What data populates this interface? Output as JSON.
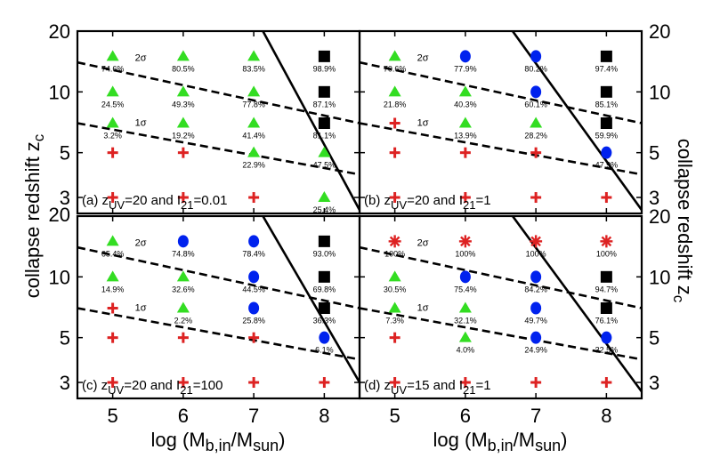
{
  "chart_data": {
    "type": "scatter",
    "x_ticks": [
      "5",
      "6",
      "7",
      "8"
    ],
    "y_ticks": [
      "3",
      "5",
      "10",
      "20"
    ],
    "xlabel": "log (M",
    "xlabel_sub": "b,in",
    "xlabel_mid": "/M",
    "xlabel_sub2": "sun",
    "xlabel_end": ")",
    "ylabel_left": "collapse redshift z",
    "ylabel_right": "collapse redshift z",
    "ylabel_sub": "c",
    "xlim": [
      4.5,
      8.5
    ],
    "ylim": [
      2.5,
      20
    ],
    "y_scale": "log",
    "sigma_labels": [
      "2σ",
      "1σ"
    ],
    "colors": {
      "triangle": "#33dd22",
      "circle": "#0022ee",
      "square": "#000000",
      "cross": "#dd2222",
      "star": "#dd2222"
    },
    "panels": [
      {
        "label_pre": "(a) z",
        "label_sub1": "UV",
        "label_mid": "=20 and I",
        "label_sub2": "21",
        "label_end": "=0.01",
        "lines": {
          "sigma2": [
            [
              4.5,
              14.0
            ],
            [
              8.5,
              7.0
            ]
          ],
          "sigma1": [
            [
              4.5,
              7.0
            ],
            [
              8.5,
              3.9
            ]
          ],
          "solid": [
            [
              7.13,
              20.0
            ],
            [
              8.5,
              2.6
            ]
          ]
        },
        "markers": [
          {
            "x": 5,
            "y": 15,
            "shape": "triangle",
            "label": "74.6%"
          },
          {
            "x": 6,
            "y": 15,
            "shape": "triangle",
            "label": "80.5%"
          },
          {
            "x": 7,
            "y": 15,
            "shape": "triangle",
            "label": "83.5%"
          },
          {
            "x": 8,
            "y": 15,
            "shape": "square",
            "label": "98.9%"
          },
          {
            "x": 5,
            "y": 10,
            "shape": "triangle",
            "label": "24.5%"
          },
          {
            "x": 6,
            "y": 10,
            "shape": "triangle",
            "label": "49.3%"
          },
          {
            "x": 7,
            "y": 10,
            "shape": "triangle",
            "label": "77.8%"
          },
          {
            "x": 8,
            "y": 10,
            "shape": "square",
            "label": "87.1%"
          },
          {
            "x": 5,
            "y": 7,
            "shape": "triangle",
            "label": "3.2%"
          },
          {
            "x": 6,
            "y": 7,
            "shape": "triangle",
            "label": "19.2%"
          },
          {
            "x": 7,
            "y": 7,
            "shape": "triangle",
            "label": "41.4%"
          },
          {
            "x": 8,
            "y": 7,
            "shape": "square",
            "label": "81.1%"
          },
          {
            "x": 5,
            "y": 5,
            "shape": "cross",
            "label": ""
          },
          {
            "x": 6,
            "y": 5,
            "shape": "cross",
            "label": ""
          },
          {
            "x": 7,
            "y": 5,
            "shape": "triangle",
            "label": "22.9%"
          },
          {
            "x": 8,
            "y": 5,
            "shape": "triangle",
            "label": "47.5%"
          },
          {
            "x": 5,
            "y": 3,
            "shape": "cross",
            "label": ""
          },
          {
            "x": 6,
            "y": 3,
            "shape": "cross",
            "label": ""
          },
          {
            "x": 7,
            "y": 3,
            "shape": "cross",
            "label": ""
          },
          {
            "x": 8,
            "y": 3,
            "shape": "triangle",
            "label": "25.4%"
          }
        ]
      },
      {
        "label_pre": "(b) z",
        "label_sub1": "UV",
        "label_mid": "=20 and I",
        "label_sub2": "21",
        "label_end": "=1",
        "lines": {
          "sigma2": [
            [
              4.5,
              14.0
            ],
            [
              8.5,
              7.0
            ]
          ],
          "sigma1": [
            [
              4.5,
              7.0
            ],
            [
              8.5,
              3.9
            ]
          ],
          "solid": [
            [
              6.67,
              20.0
            ],
            [
              8.5,
              2.6
            ]
          ]
        },
        "markers": [
          {
            "x": 5,
            "y": 15,
            "shape": "triangle",
            "label": "70.6%"
          },
          {
            "x": 6,
            "y": 15,
            "shape": "circle",
            "label": "77.9%"
          },
          {
            "x": 7,
            "y": 15,
            "shape": "circle",
            "label": "80.2%"
          },
          {
            "x": 8,
            "y": 15,
            "shape": "square",
            "label": "97.4%"
          },
          {
            "x": 5,
            "y": 10,
            "shape": "triangle",
            "label": "21.8%"
          },
          {
            "x": 6,
            "y": 10,
            "shape": "triangle",
            "label": "40.3%"
          },
          {
            "x": 7,
            "y": 10,
            "shape": "circle",
            "label": "60.1%"
          },
          {
            "x": 8,
            "y": 10,
            "shape": "square",
            "label": "85.1%"
          },
          {
            "x": 5,
            "y": 7,
            "shape": "cross",
            "label": ""
          },
          {
            "x": 6,
            "y": 7,
            "shape": "triangle",
            "label": "13.9%"
          },
          {
            "x": 7,
            "y": 7,
            "shape": "triangle",
            "label": "28.2%"
          },
          {
            "x": 8,
            "y": 7,
            "shape": "square",
            "label": "59.9%"
          },
          {
            "x": 5,
            "y": 5,
            "shape": "cross",
            "label": ""
          },
          {
            "x": 6,
            "y": 5,
            "shape": "cross",
            "label": ""
          },
          {
            "x": 7,
            "y": 5,
            "shape": "cross",
            "label": ""
          },
          {
            "x": 8,
            "y": 5,
            "shape": "circle",
            "label": "47.9%"
          },
          {
            "x": 5,
            "y": 3,
            "shape": "cross",
            "label": ""
          },
          {
            "x": 6,
            "y": 3,
            "shape": "cross",
            "label": ""
          },
          {
            "x": 7,
            "y": 3,
            "shape": "cross",
            "label": ""
          },
          {
            "x": 8,
            "y": 3,
            "shape": "cross",
            "label": ""
          }
        ]
      },
      {
        "label_pre": "(c) z",
        "label_sub1": "UV",
        "label_mid": "=20 and I",
        "label_sub2": "21",
        "label_end": "=100",
        "lines": {
          "sigma2": [
            [
              4.5,
              14.0
            ],
            [
              8.5,
              7.0
            ]
          ],
          "sigma1": [
            [
              4.5,
              7.0
            ],
            [
              8.5,
              3.9
            ]
          ],
          "solid": [
            [
              7.13,
              20.0
            ],
            [
              8.5,
              3.0
            ]
          ]
        },
        "markers": [
          {
            "x": 5,
            "y": 15,
            "shape": "triangle",
            "label": "65.4%"
          },
          {
            "x": 6,
            "y": 15,
            "shape": "circle",
            "label": "74.8%"
          },
          {
            "x": 7,
            "y": 15,
            "shape": "circle",
            "label": "78.4%"
          },
          {
            "x": 8,
            "y": 15,
            "shape": "square",
            "label": "93.0%"
          },
          {
            "x": 5,
            "y": 10,
            "shape": "triangle",
            "label": "14.9%"
          },
          {
            "x": 6,
            "y": 10,
            "shape": "triangle",
            "label": "32.6%"
          },
          {
            "x": 7,
            "y": 10,
            "shape": "circle",
            "label": "44.5%"
          },
          {
            "x": 8,
            "y": 10,
            "shape": "square",
            "label": "69.8%"
          },
          {
            "x": 5,
            "y": 7,
            "shape": "cross",
            "label": ""
          },
          {
            "x": 6,
            "y": 7,
            "shape": "triangle",
            "label": "2.2%"
          },
          {
            "x": 7,
            "y": 7,
            "shape": "circle",
            "label": "25.8%"
          },
          {
            "x": 8,
            "y": 7,
            "shape": "square",
            "label": "36.3%"
          },
          {
            "x": 5,
            "y": 5,
            "shape": "cross",
            "label": ""
          },
          {
            "x": 6,
            "y": 5,
            "shape": "cross",
            "label": ""
          },
          {
            "x": 7,
            "y": 5,
            "shape": "cross",
            "label": ""
          },
          {
            "x": 8,
            "y": 5,
            "shape": "circle",
            "label": "6.1%"
          },
          {
            "x": 5,
            "y": 3,
            "shape": "cross",
            "label": ""
          },
          {
            "x": 6,
            "y": 3,
            "shape": "cross",
            "label": ""
          },
          {
            "x": 7,
            "y": 3,
            "shape": "cross",
            "label": ""
          },
          {
            "x": 8,
            "y": 3,
            "shape": "cross",
            "label": ""
          }
        ]
      },
      {
        "label_pre": "(d) z",
        "label_sub1": "UV",
        "label_mid": "=15 and I",
        "label_sub2": "21",
        "label_end": "=1",
        "lines": {
          "sigma2": [
            [
              4.5,
              14.0
            ],
            [
              8.5,
              7.0
            ]
          ],
          "sigma1": [
            [
              4.5,
              7.0
            ],
            [
              8.5,
              3.9
            ]
          ],
          "solid": [
            [
              6.67,
              20.0
            ],
            [
              8.5,
              2.7
            ]
          ]
        },
        "markers": [
          {
            "x": 5,
            "y": 15,
            "shape": "star",
            "label": "100%"
          },
          {
            "x": 6,
            "y": 15,
            "shape": "star",
            "label": "100%"
          },
          {
            "x": 7,
            "y": 15,
            "shape": "star",
            "label": "100%"
          },
          {
            "x": 8,
            "y": 15,
            "shape": "star",
            "label": "100%"
          },
          {
            "x": 5,
            "y": 10,
            "shape": "triangle",
            "label": "30.5%"
          },
          {
            "x": 6,
            "y": 10,
            "shape": "circle",
            "label": "75.4%"
          },
          {
            "x": 7,
            "y": 10,
            "shape": "circle",
            "label": "84.2%"
          },
          {
            "x": 8,
            "y": 10,
            "shape": "square",
            "label": "94.7%"
          },
          {
            "x": 5,
            "y": 7,
            "shape": "triangle",
            "label": "7.3%"
          },
          {
            "x": 6,
            "y": 7,
            "shape": "triangle",
            "label": "32.1%"
          },
          {
            "x": 7,
            "y": 7,
            "shape": "circle",
            "label": "49.7%"
          },
          {
            "x": 8,
            "y": 7,
            "shape": "square",
            "label": "76.1%"
          },
          {
            "x": 5,
            "y": 5,
            "shape": "cross",
            "label": ""
          },
          {
            "x": 6,
            "y": 5,
            "shape": "triangle",
            "label": "4.0%"
          },
          {
            "x": 7,
            "y": 5,
            "shape": "circle",
            "label": "24.9%"
          },
          {
            "x": 8,
            "y": 5,
            "shape": "circle",
            "label": "32.5%"
          },
          {
            "x": 5,
            "y": 3,
            "shape": "cross",
            "label": ""
          },
          {
            "x": 6,
            "y": 3,
            "shape": "cross",
            "label": ""
          },
          {
            "x": 7,
            "y": 3,
            "shape": "cross",
            "label": ""
          },
          {
            "x": 8,
            "y": 3,
            "shape": "cross",
            "label": ""
          }
        ]
      }
    ]
  }
}
